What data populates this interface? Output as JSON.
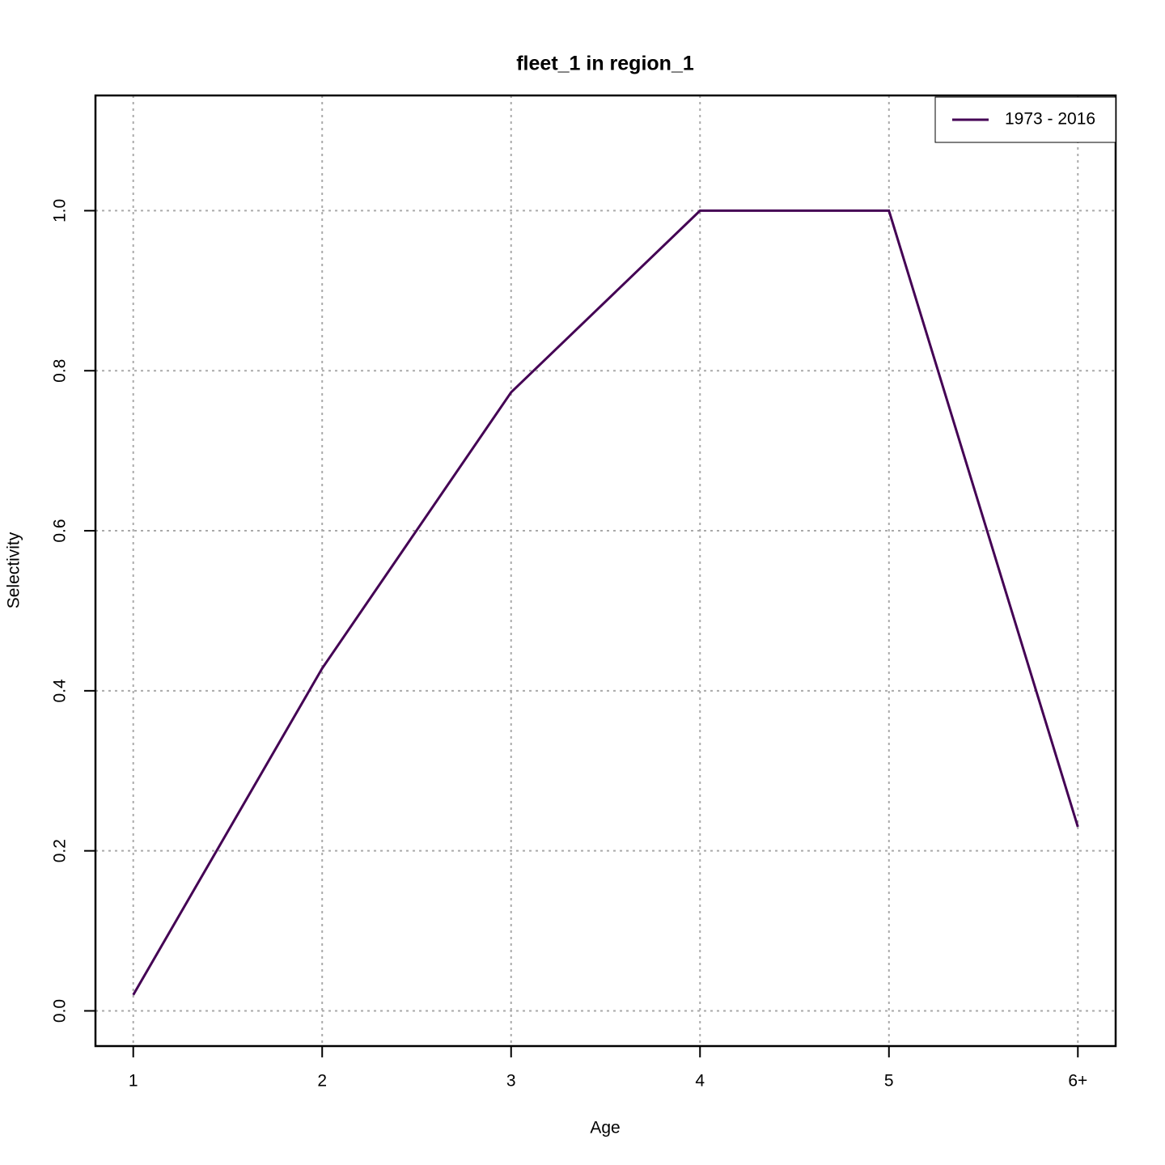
{
  "chart_data": {
    "type": "line",
    "title": "fleet_1 in region_1",
    "xlabel": "Age",
    "ylabel": "Selectivity",
    "x": [
      1,
      2,
      3,
      4,
      5,
      6
    ],
    "series": [
      {
        "name": "1973 - 2016",
        "color": "#440154",
        "values": [
          0.02,
          0.428,
          0.773,
          1.0,
          1.0,
          0.23
        ]
      }
    ],
    "xlim": [
      0.8,
      6.2
    ],
    "xticks": [
      1,
      2,
      3,
      4,
      5,
      {
        "value": 6,
        "label": "6+"
      }
    ],
    "ylim": [
      -0.044,
      1.144
    ],
    "yticks": [
      {
        "value": 0,
        "label": "0.0"
      },
      0.2,
      0.4,
      0.6,
      0.8,
      {
        "value": 1,
        "label": "1.0"
      }
    ],
    "grid": true,
    "legend": "top-right"
  }
}
